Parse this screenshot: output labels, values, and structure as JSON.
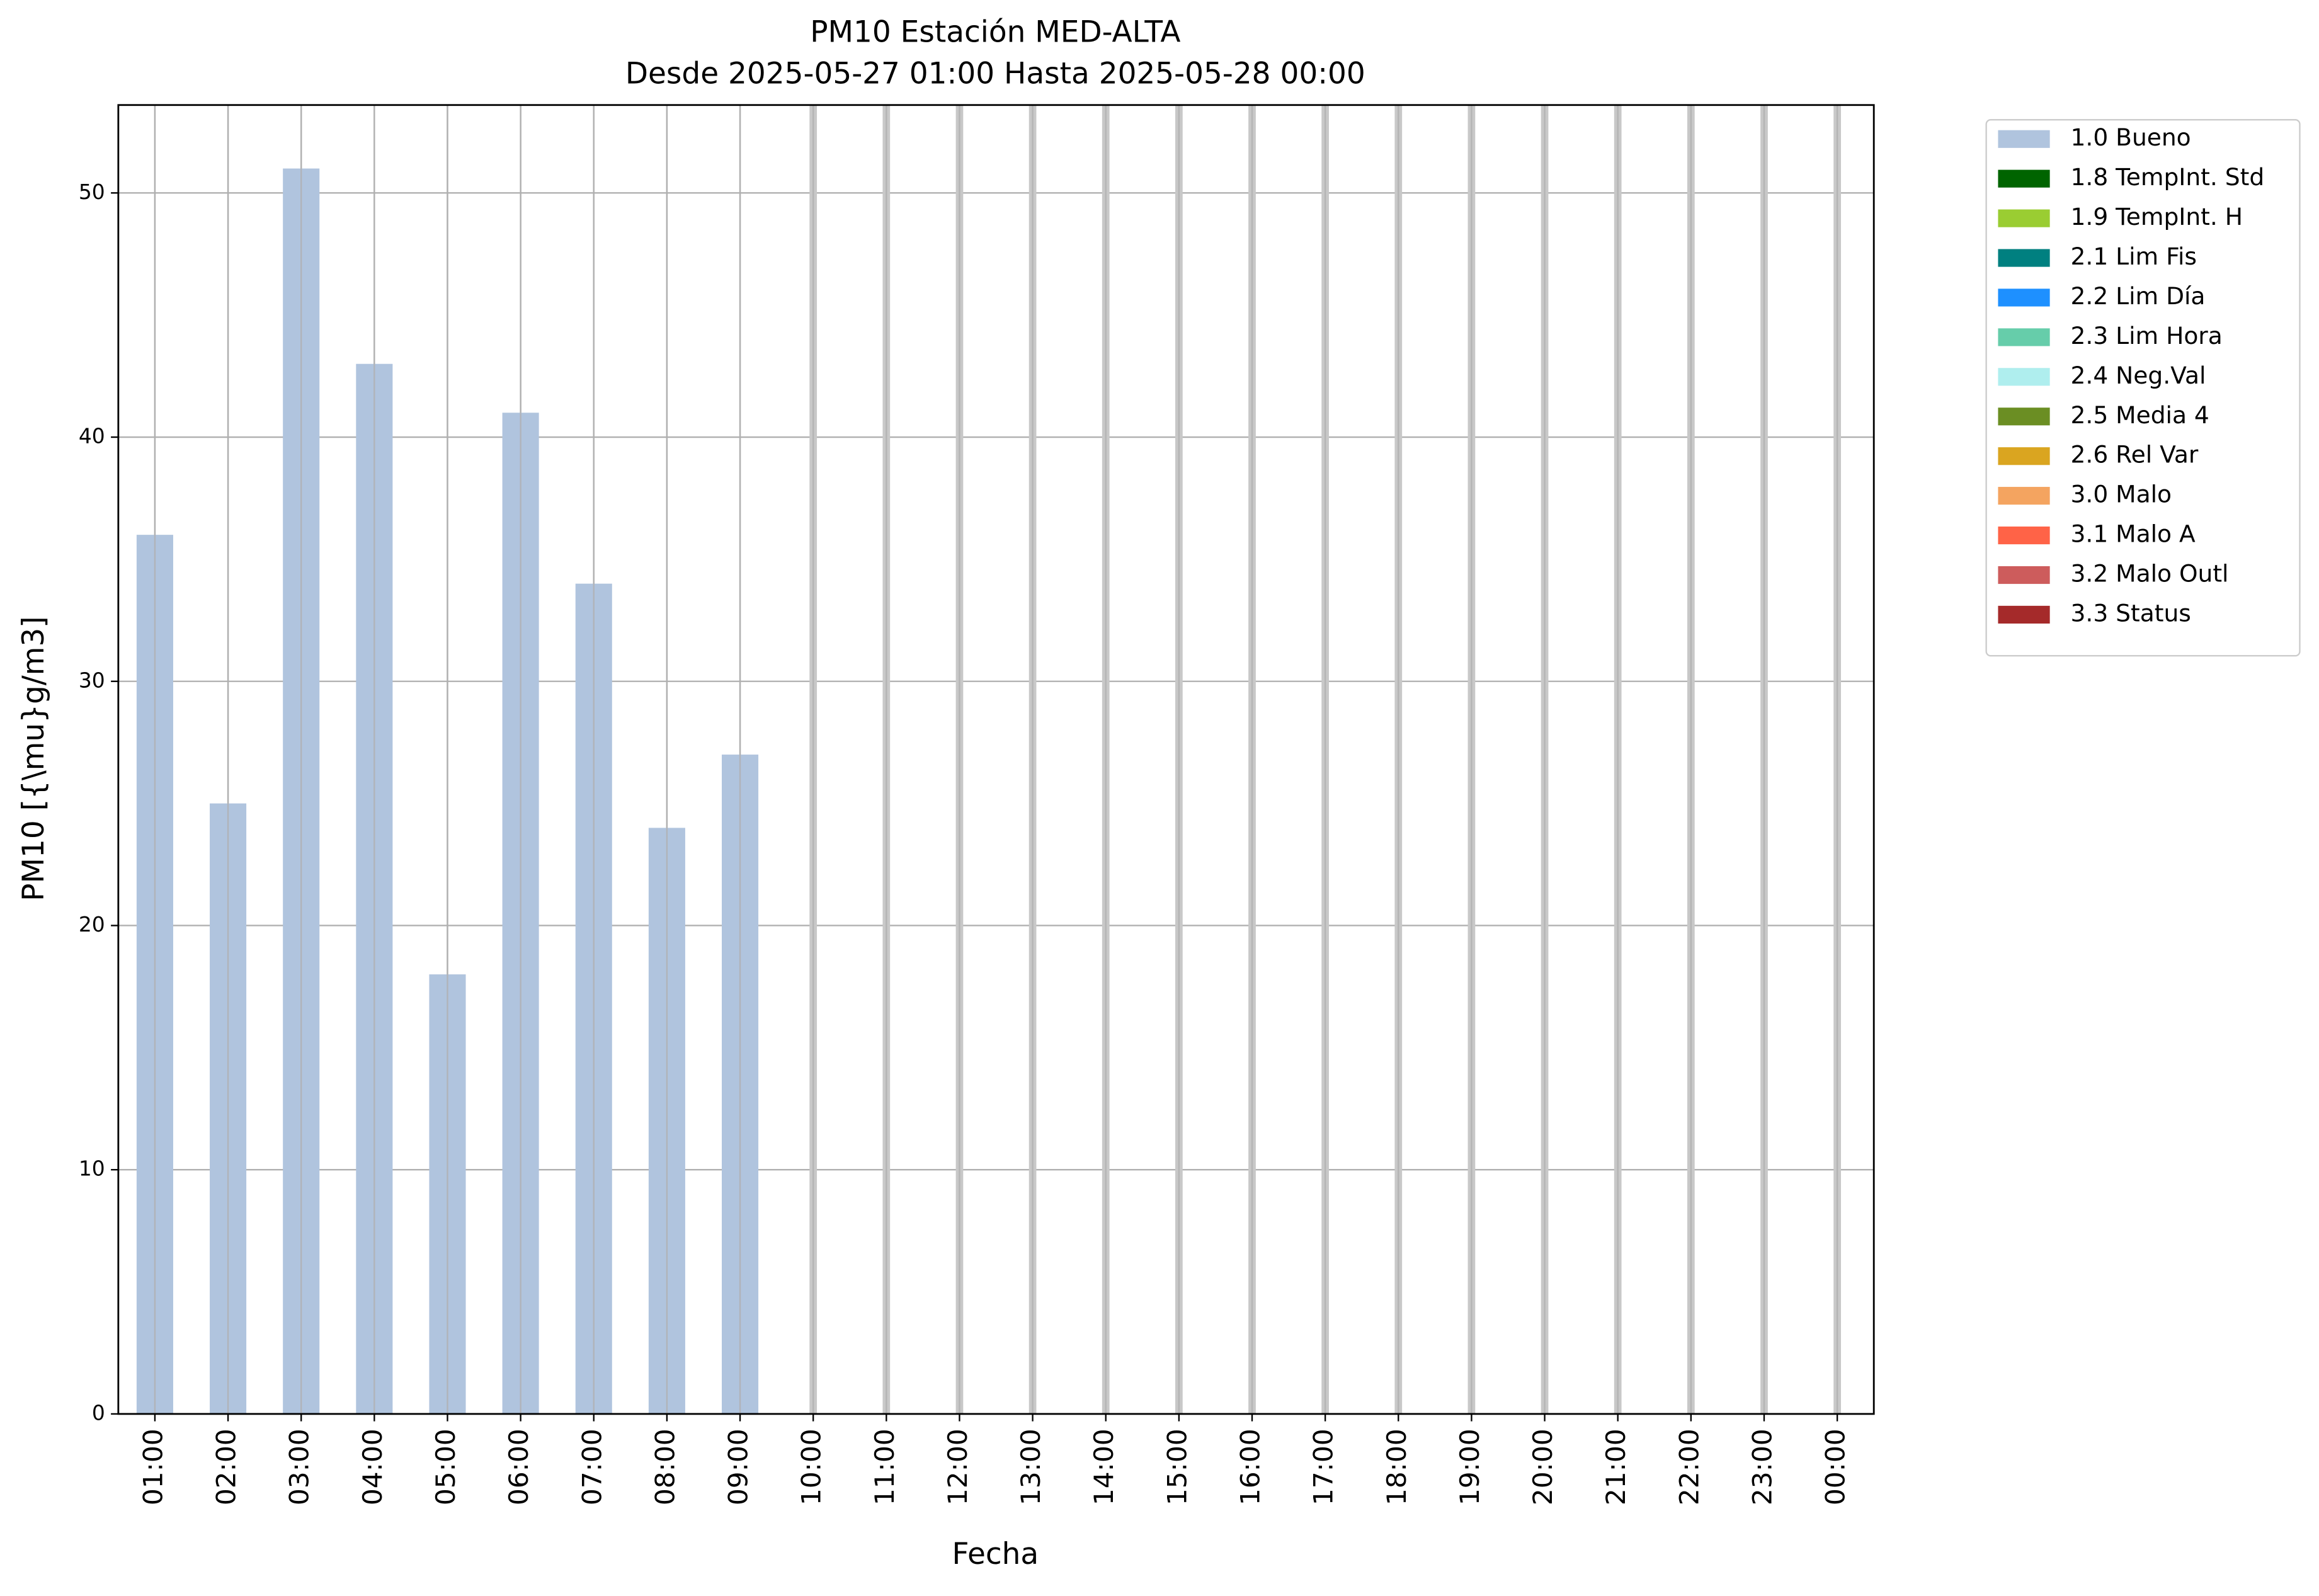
{
  "chart_data": {
    "type": "bar",
    "title": "PM10 Estación MED-ALTA",
    "subtitle": "Desde 2025-05-27 01:00 Hasta 2025-05-28 00:00",
    "x_label": "Fecha",
    "y_label": "PM10 [{\\mu}g/m3]",
    "categories": [
      "01:00",
      "02:00",
      "03:00",
      "04:00",
      "05:00",
      "06:00",
      "07:00",
      "08:00",
      "09:00",
      "10:00",
      "11:00",
      "12:00",
      "13:00",
      "14:00",
      "15:00",
      "16:00",
      "17:00",
      "18:00",
      "19:00",
      "20:00",
      "21:00",
      "22:00",
      "23:00",
      "00:00"
    ],
    "series": [
      {
        "name": "1.0 Bueno",
        "color": "#b0c4de",
        "values": [
          36,
          25,
          51,
          43,
          18,
          41,
          34,
          24,
          27,
          null,
          null,
          null,
          null,
          null,
          null,
          null,
          null,
          null,
          null,
          null,
          null,
          null,
          null,
          null
        ]
      },
      {
        "name": "1.8 TempInt. Std",
        "color": "#006400",
        "values": [
          null,
          null,
          null,
          null,
          null,
          null,
          null,
          null,
          null,
          null,
          null,
          null,
          null,
          null,
          null,
          null,
          null,
          null,
          null,
          null,
          null,
          null,
          null,
          null
        ]
      },
      {
        "name": "1.9 TempInt. H",
        "color": "#9acd32",
        "values": [
          null,
          null,
          null,
          null,
          null,
          null,
          null,
          null,
          null,
          null,
          null,
          null,
          null,
          null,
          null,
          null,
          null,
          null,
          null,
          null,
          null,
          null,
          null,
          null
        ]
      },
      {
        "name": "2.1 Lim Fis",
        "color": "#008080",
        "values": [
          null,
          null,
          null,
          null,
          null,
          null,
          null,
          null,
          null,
          null,
          null,
          null,
          null,
          null,
          null,
          null,
          null,
          null,
          null,
          null,
          null,
          null,
          null,
          null
        ]
      },
      {
        "name": "2.2 Lim Día",
        "color": "#1e90ff",
        "values": [
          null,
          null,
          null,
          null,
          null,
          null,
          null,
          null,
          null,
          null,
          null,
          null,
          null,
          null,
          null,
          null,
          null,
          null,
          null,
          null,
          null,
          null,
          null,
          null
        ]
      },
      {
        "name": "2.3 Lim Hora",
        "color": "#66cdaa",
        "values": [
          null,
          null,
          null,
          null,
          null,
          null,
          null,
          null,
          null,
          null,
          null,
          null,
          null,
          null,
          null,
          null,
          null,
          null,
          null,
          null,
          null,
          null,
          null,
          null
        ]
      },
      {
        "name": "2.4 Neg.Val",
        "color": "#afeeee",
        "values": [
          null,
          null,
          null,
          null,
          null,
          null,
          null,
          null,
          null,
          null,
          null,
          null,
          null,
          null,
          null,
          null,
          null,
          null,
          null,
          null,
          null,
          null,
          null,
          null
        ]
      },
      {
        "name": "2.5 Media 4",
        "color": "#6b8e23",
        "values": [
          null,
          null,
          null,
          null,
          null,
          null,
          null,
          null,
          null,
          null,
          null,
          null,
          null,
          null,
          null,
          null,
          null,
          null,
          null,
          null,
          null,
          null,
          null,
          null
        ]
      },
      {
        "name": "2.6 Rel Var",
        "color": "#daa520",
        "values": [
          null,
          null,
          null,
          null,
          null,
          null,
          null,
          null,
          null,
          null,
          null,
          null,
          null,
          null,
          null,
          null,
          null,
          null,
          null,
          null,
          null,
          null,
          null,
          null
        ]
      },
      {
        "name": "3.0 Malo",
        "color": "#f4a460",
        "values": [
          null,
          null,
          null,
          null,
          null,
          null,
          null,
          null,
          null,
          null,
          null,
          null,
          null,
          null,
          null,
          null,
          null,
          null,
          null,
          null,
          null,
          null,
          null,
          null
        ]
      },
      {
        "name": "3.1 Malo A",
        "color": "#ff6347",
        "values": [
          null,
          null,
          null,
          null,
          null,
          null,
          null,
          null,
          null,
          null,
          null,
          null,
          null,
          null,
          null,
          null,
          null,
          null,
          null,
          null,
          null,
          null,
          null,
          null
        ]
      },
      {
        "name": "3.2 Malo Outl",
        "color": "#cd5c5c",
        "values": [
          null,
          null,
          null,
          null,
          null,
          null,
          null,
          null,
          null,
          null,
          null,
          null,
          null,
          null,
          null,
          null,
          null,
          null,
          null,
          null,
          null,
          null,
          null,
          null
        ]
      },
      {
        "name": "3.3 Status",
        "color": "#a52a2a",
        "values": [
          null,
          null,
          null,
          null,
          null,
          null,
          null,
          null,
          null,
          null,
          null,
          null,
          null,
          null,
          null,
          null,
          null,
          null,
          null,
          null,
          null,
          null,
          null,
          null
        ]
      }
    ],
    "ylim": [
      0,
      53.6
    ],
    "yticks": [
      0,
      10,
      20,
      30,
      40,
      50
    ],
    "grid": true,
    "stacked": true,
    "legend": "outside-right"
  }
}
